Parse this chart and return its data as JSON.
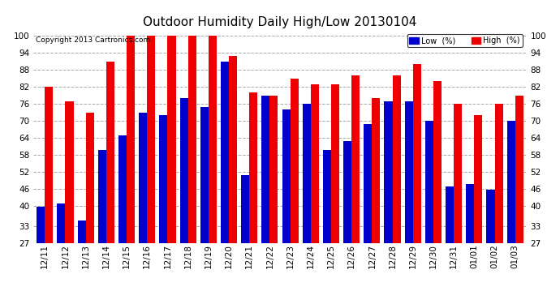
{
  "title": "Outdoor Humidity Daily High/Low 20130104",
  "copyright": "Copyright 2013 Cartronics.com",
  "dates": [
    "12/11",
    "12/12",
    "12/13",
    "12/14",
    "12/15",
    "12/16",
    "12/17",
    "12/18",
    "12/19",
    "12/20",
    "12/21",
    "12/22",
    "12/23",
    "12/24",
    "12/25",
    "12/26",
    "12/27",
    "12/28",
    "12/29",
    "12/30",
    "12/31",
    "01/01",
    "01/02",
    "01/03"
  ],
  "high_values": [
    82,
    77,
    73,
    91,
    100,
    100,
    100,
    100,
    100,
    93,
    80,
    79,
    85,
    83,
    83,
    86,
    78,
    86,
    90,
    84,
    76,
    72,
    76,
    79
  ],
  "low_values": [
    40,
    41,
    35,
    60,
    65,
    73,
    72,
    78,
    75,
    91,
    51,
    79,
    74,
    76,
    60,
    63,
    69,
    77,
    77,
    70,
    47,
    48,
    46,
    70
  ],
  "bar_color_low": "#0000cc",
  "bar_color_high": "#ee0000",
  "background_color": "#ffffff",
  "plot_bg_color": "#ffffff",
  "grid_color": "#aaaaaa",
  "title_fontsize": 11,
  "tick_fontsize": 7.5,
  "yticks": [
    27,
    33,
    40,
    46,
    52,
    58,
    64,
    70,
    76,
    82,
    88,
    94,
    100
  ],
  "ymin": 27,
  "ymax": 102,
  "legend_low_label": "Low  (%)",
  "legend_high_label": "High  (%)"
}
